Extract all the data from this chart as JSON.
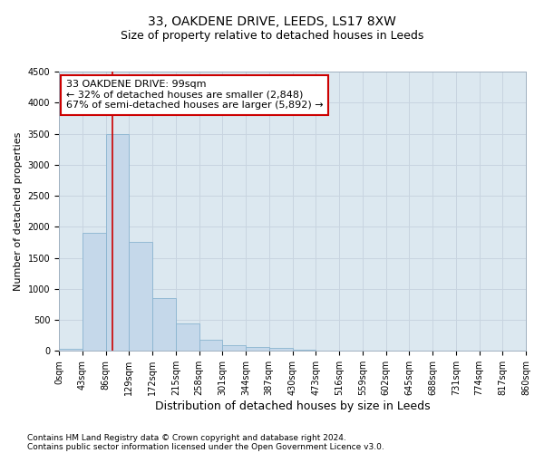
{
  "title_line1": "33, OAKDENE DRIVE, LEEDS, LS17 8XW",
  "title_line2": "Size of property relative to detached houses in Leeds",
  "xlabel": "Distribution of detached houses by size in Leeds",
  "ylabel": "Number of detached properties",
  "bin_edges": [
    0,
    43,
    86,
    129,
    172,
    215,
    258,
    301,
    344,
    387,
    430,
    473,
    516,
    559,
    602,
    645,
    688,
    731,
    774,
    817,
    860
  ],
  "bar_heights": [
    30,
    1900,
    3500,
    1750,
    850,
    450,
    175,
    90,
    60,
    50,
    20,
    10,
    5,
    3,
    2,
    1,
    0,
    0,
    0,
    0
  ],
  "bar_color": "#c5d8ea",
  "bar_edge_color": "#8ab4d0",
  "grid_color": "#c8d4e0",
  "property_size": 99,
  "property_line_color": "#cc0000",
  "ylim": [
    0,
    4500
  ],
  "yticks": [
    0,
    500,
    1000,
    1500,
    2000,
    2500,
    3000,
    3500,
    4000,
    4500
  ],
  "annotation_title": "33 OAKDENE DRIVE: 99sqm",
  "annotation_line1": "← 32% of detached houses are smaller (2,848)",
  "annotation_line2": "67% of semi-detached houses are larger (5,892) →",
  "annotation_box_color": "#ffffff",
  "annotation_border_color": "#cc0000",
  "footnote1": "Contains HM Land Registry data © Crown copyright and database right 2024.",
  "footnote2": "Contains public sector information licensed under the Open Government Licence v3.0.",
  "fig_bg_color": "#ffffff",
  "plot_bg_color": "#dce8f0",
  "title1_fontsize": 10,
  "title2_fontsize": 9,
  "xlabel_fontsize": 9,
  "ylabel_fontsize": 8,
  "tick_fontsize": 7,
  "annotation_fontsize": 8,
  "footnote_fontsize": 6.5
}
